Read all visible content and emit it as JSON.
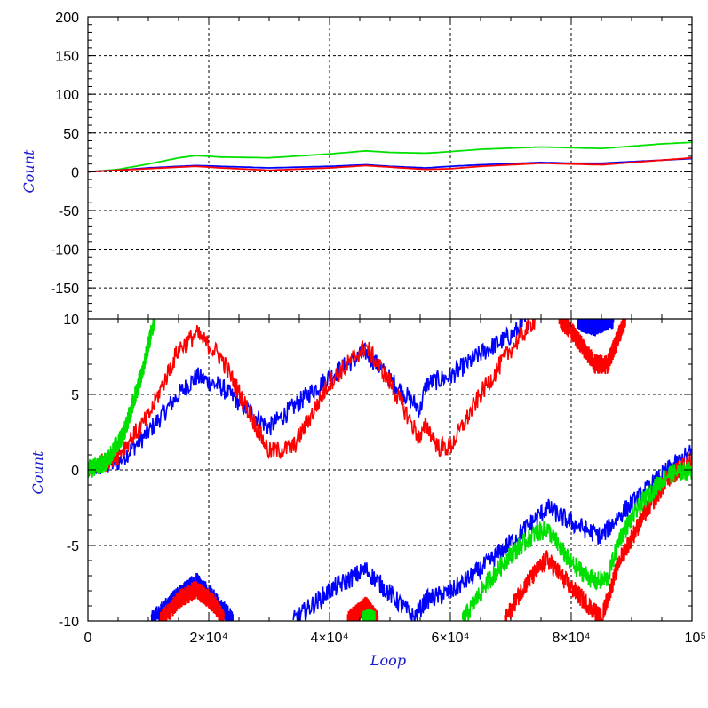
{
  "chart_data": [
    {
      "type": "line",
      "panel": "top",
      "ylabel": "Count",
      "ylim": [
        -190,
        200
      ],
      "yticks": [
        200,
        150,
        100,
        50,
        0,
        -50,
        -100,
        -150
      ],
      "xlim": [
        0,
        100000
      ],
      "grid": true,
      "series": [
        {
          "color": "#00e000",
          "x": [
            0,
            5000,
            10000,
            15000,
            18000,
            22000,
            30000,
            40000,
            46000,
            50000,
            56000,
            60000,
            65000,
            75000,
            80000,
            85000,
            90000,
            95000,
            100000
          ],
          "values": [
            0,
            3,
            10,
            18,
            21,
            19,
            18,
            23,
            27,
            25,
            24,
            26,
            29,
            32,
            31,
            30,
            33,
            36,
            38
          ]
        },
        {
          "color": "#0000ff",
          "x": [
            0,
            5000,
            10000,
            15000,
            18000,
            22000,
            30000,
            40000,
            46000,
            50000,
            56000,
            60000,
            65000,
            75000,
            80000,
            85000,
            90000,
            95000,
            100000
          ],
          "values": [
            0,
            2,
            5,
            7,
            8,
            7,
            5,
            7,
            9,
            7,
            5,
            7,
            9,
            12,
            11,
            11,
            13,
            15,
            17
          ]
        },
        {
          "color": "#ff0000",
          "x": [
            0,
            5000,
            10000,
            15000,
            18000,
            22000,
            30000,
            40000,
            46000,
            50000,
            56000,
            60000,
            65000,
            75000,
            80000,
            85000,
            90000,
            95000,
            100000
          ],
          "values": [
            0,
            2,
            4,
            6,
            7,
            5,
            2,
            5,
            8,
            6,
            3,
            4,
            7,
            11,
            10,
            9,
            12,
            15,
            18
          ]
        }
      ]
    },
    {
      "type": "line",
      "panel": "bottom",
      "ylabel": "Count",
      "xlabel": "Loop",
      "ylim": [
        -10,
        10
      ],
      "yticks": [
        10,
        5,
        0,
        -5,
        -10
      ],
      "xlim": [
        0,
        100000
      ],
      "xticks": [
        "0",
        "2×10⁴",
        "4×10⁴",
        "6×10⁴",
        "8×10⁴",
        "10⁵"
      ],
      "grid": true,
      "series": [
        {
          "color": "#0000ff",
          "segments": [
            {
              "x": [
                0,
                5000,
                10000,
                15000,
                18000,
                22000,
                30000,
                40000,
                46000,
                50000,
                55000,
                56000,
                60000,
                65000,
                70000,
                73000
              ],
              "values": [
                0,
                0.5,
                2.5,
                5,
                6.2,
                5.5,
                2.8,
                6.2,
                7.8,
                6.0,
                4.0,
                5.7,
                6.2,
                7.7,
                8.9,
                10
              ]
            },
            {
              "x": [
                81000,
                82000,
                84000,
                86000,
                87000
              ],
              "values": [
                10,
                9.7,
                9.5,
                9.9,
                10
              ]
            },
            {
              "x": [
                10500,
                15000,
                18000,
                21000,
                24000
              ],
              "values": [
                -10,
                -8.3,
                -7.4,
                -8.6,
                -10
              ]
            },
            {
              "x": [
                34000,
                40000,
                46000,
                50000,
                54000,
                56000,
                60000,
                65000,
                70000,
                76000,
                80000,
                85000,
                88000,
                92000,
                96000,
                100000
              ],
              "values": [
                -10,
                -8.0,
                -6.6,
                -8.2,
                -9.8,
                -8.6,
                -8.1,
                -6.6,
                -4.8,
                -2.5,
                -3.5,
                -4.4,
                -3.0,
                -1.5,
                0,
                1.2
              ]
            }
          ]
        },
        {
          "color": "#ff0000",
          "segments": [
            {
              "x": [
                0,
                5000,
                10000,
                15000,
                18000,
                22000,
                30000,
                34000,
                40000,
                46000,
                50000,
                55000,
                56000,
                58000,
                60000,
                65000,
                70000,
                74000
              ],
              "values": [
                0,
                1,
                3.5,
                8,
                9.0,
                7.5,
                1.2,
                1.5,
                5.8,
                8.2,
                5.8,
                2.0,
                3.0,
                1.5,
                1.5,
                5.0,
                8.0,
                10
              ]
            },
            {
              "x": [
                78000,
                80000,
                84000,
                86000,
                89000
              ],
              "values": [
                10,
                9.2,
                7.0,
                7.0,
                10
              ]
            },
            {
              "x": [
                12000,
                15000,
                18000,
                21000,
                22500
              ],
              "values": [
                -10,
                -8.6,
                -7.9,
                -8.9,
                -10
              ]
            },
            {
              "x": [
                43000,
                46000,
                48000
              ],
              "values": [
                -10,
                -9.0,
                -10
              ]
            },
            {
              "x": [
                69000,
                72000,
                76000,
                80000,
                85000,
                88000,
                92000,
                96000,
                100000
              ],
              "values": [
                -10,
                -7.8,
                -5.9,
                -7.8,
                -9.8,
                -6.0,
                -3.0,
                -0.6,
                0.7
              ]
            }
          ]
        },
        {
          "color": "#00e000",
          "segments": [
            {
              "x": [
                0,
                3000,
                6000,
                9000,
                11000
              ],
              "values": [
                0,
                0.5,
                2.5,
                6.5,
                10
              ]
            },
            {
              "x": [
                45500,
                46500,
                47500
              ],
              "values": [
                -10,
                -9.8,
                -10
              ]
            },
            {
              "x": [
                62000,
                66000,
                70000,
                74000,
                76000,
                80000,
                84000,
                86000,
                88000,
                92000,
                96000,
                100000
              ],
              "values": [
                -10,
                -7.5,
                -5.6,
                -4.2,
                -3.9,
                -6.2,
                -7.4,
                -7.2,
                -4.5,
                -2.0,
                -0.3,
                0
              ]
            }
          ]
        }
      ]
    }
  ]
}
